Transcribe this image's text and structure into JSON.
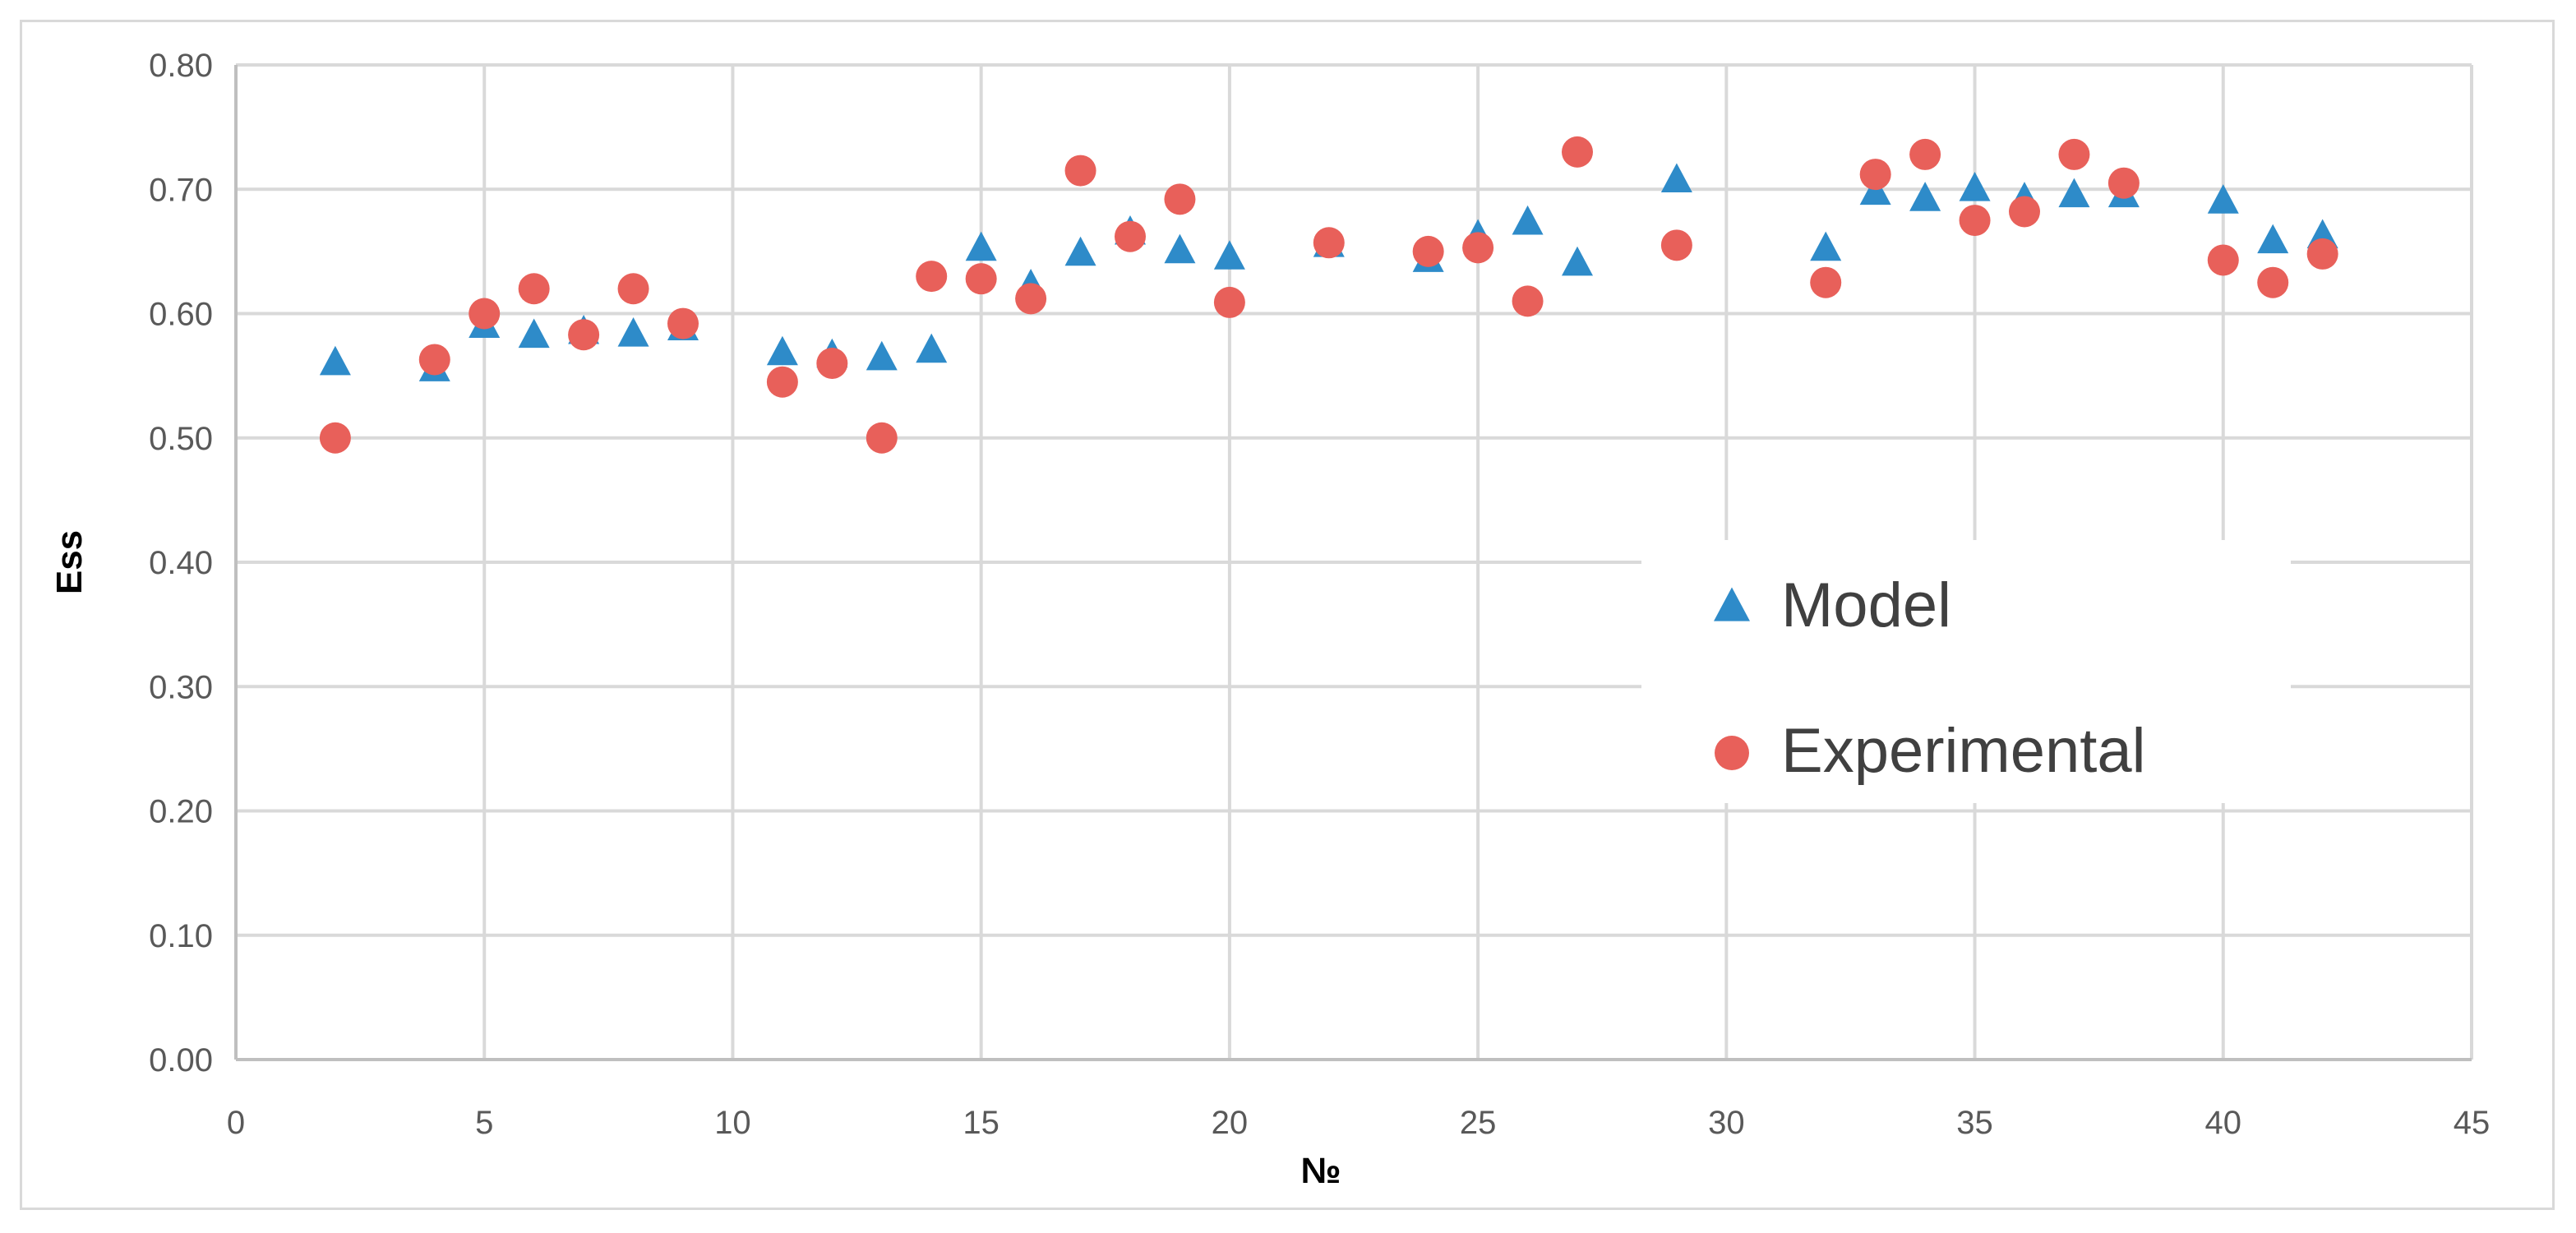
{
  "chart_data": {
    "type": "scatter",
    "title": "",
    "xlabel": "№",
    "ylabel": "Ess",
    "xlim": [
      0,
      45
    ],
    "ylim": [
      0,
      0.8
    ],
    "xticks": [
      0,
      5,
      10,
      15,
      20,
      25,
      30,
      35,
      40,
      45
    ],
    "yticks": [
      0.0,
      0.1,
      0.2,
      0.3,
      0.4,
      0.5,
      0.6,
      0.7,
      0.8
    ],
    "grid": true,
    "legend_position": "right",
    "series": [
      {
        "name": "Model",
        "marker": "triangle",
        "color": "#2e8bc9",
        "x": [
          2,
          4,
          5,
          6,
          7,
          8,
          9,
          11,
          12,
          13,
          14,
          15,
          16,
          17,
          18,
          19,
          20,
          22,
          24,
          25,
          26,
          27,
          29,
          32,
          33,
          34,
          35,
          36,
          37,
          38,
          40,
          41,
          42
        ],
        "y": [
          0.56,
          0.555,
          0.59,
          0.582,
          0.585,
          0.583,
          0.588,
          0.568,
          0.566,
          0.564,
          0.57,
          0.652,
          0.622,
          0.648,
          0.665,
          0.65,
          0.645,
          0.655,
          0.643,
          0.662,
          0.673,
          0.64,
          0.707,
          0.652,
          0.697,
          0.692,
          0.7,
          0.692,
          0.695,
          0.695,
          0.69,
          0.658,
          0.662
        ]
      },
      {
        "name": "Experimental",
        "marker": "circle",
        "color": "#e8605a",
        "x": [
          2,
          4,
          5,
          6,
          7,
          8,
          9,
          11,
          12,
          13,
          14,
          15,
          16,
          17,
          18,
          19,
          20,
          22,
          24,
          25,
          26,
          27,
          29,
          32,
          33,
          34,
          35,
          36,
          37,
          38,
          40,
          41,
          42
        ],
        "y": [
          0.5,
          0.563,
          0.6,
          0.62,
          0.583,
          0.62,
          0.592,
          0.545,
          0.56,
          0.5,
          0.63,
          0.628,
          0.612,
          0.715,
          0.662,
          0.692,
          0.609,
          0.657,
          0.65,
          0.653,
          0.61,
          0.73,
          0.655,
          0.625,
          0.712,
          0.728,
          0.675,
          0.682,
          0.728,
          0.705,
          0.643,
          0.625,
          0.648
        ]
      }
    ]
  }
}
